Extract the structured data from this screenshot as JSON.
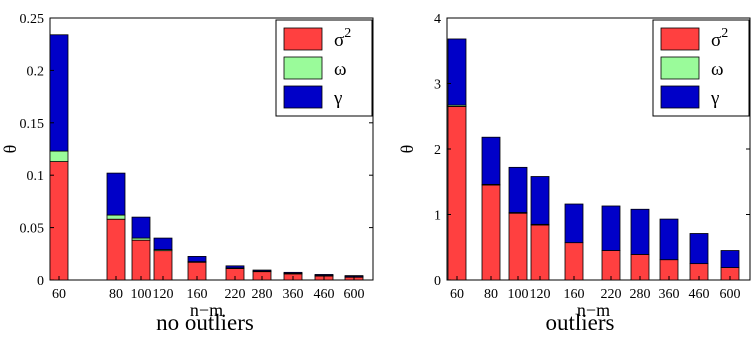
{
  "panels": [
    {
      "caption": "no outliers",
      "xlabel": "n−m",
      "ylabel": "θ",
      "yticks": [
        "0",
        "0.05",
        "0.1",
        "0.15",
        "0.2",
        "0.25"
      ]
    },
    {
      "caption": "outliers",
      "xlabel": "n−m",
      "ylabel": "θ",
      "yticks": [
        "0",
        "1",
        "2",
        "3",
        "4"
      ]
    }
  ],
  "legend": [
    {
      "label": "σ",
      "sup": "2",
      "color": "#ff4040"
    },
    {
      "label": "ω",
      "sup": "",
      "color": "#9afb9a"
    },
    {
      "label": "γ",
      "sup": "",
      "color": "#0000c8"
    }
  ],
  "chart_data": [
    {
      "type": "bar",
      "stacked": true,
      "title": "no outliers",
      "xlabel": "n−m",
      "ylabel": "θ",
      "categories": [
        "60",
        "80",
        "100",
        "120",
        "160",
        "220",
        "280",
        "360",
        "460",
        "600"
      ],
      "x": [
        60,
        80,
        100,
        120,
        160,
        220,
        280,
        360,
        460,
        600
      ],
      "ylim": [
        0,
        0.25
      ],
      "grid": false,
      "legend_position": "top-right",
      "series": [
        {
          "name": "σ²",
          "color": "#ff4040",
          "values": [
            0.113,
            0.058,
            0.038,
            0.028,
            0.017,
            0.011,
            0.008,
            0.006,
            0.004,
            0.003
          ]
        },
        {
          "name": "ω",
          "color": "#9afb9a",
          "values": [
            0.01,
            0.004,
            0.002,
            0.001,
            0.0005,
            0.0005,
            0.0005,
            0.0003,
            0.0003,
            0.0002
          ]
        },
        {
          "name": "γ",
          "color": "#0000c8",
          "values": [
            0.111,
            0.04,
            0.02,
            0.011,
            0.005,
            0.002,
            0.001,
            0.001,
            0.001,
            0.001
          ]
        }
      ]
    },
    {
      "type": "bar",
      "stacked": true,
      "title": "outliers",
      "xlabel": "n−m",
      "ylabel": "θ",
      "categories": [
        "60",
        "80",
        "100",
        "120",
        "160",
        "220",
        "280",
        "360",
        "460",
        "600"
      ],
      "x": [
        60,
        80,
        100,
        120,
        160,
        220,
        280,
        360,
        460,
        600
      ],
      "ylim": [
        0,
        4
      ],
      "grid": false,
      "legend_position": "top-right",
      "series": [
        {
          "name": "σ²",
          "color": "#ff4040",
          "values": [
            2.65,
            1.45,
            1.02,
            0.84,
            0.57,
            0.45,
            0.39,
            0.31,
            0.25,
            0.19
          ]
        },
        {
          "name": "ω",
          "color": "#9afb9a",
          "values": [
            0.02,
            0.01,
            0.01,
            0.01,
            0.0,
            0.0,
            0.0,
            0.0,
            0.0,
            0.0
          ]
        },
        {
          "name": "γ",
          "color": "#0000c8",
          "values": [
            1.01,
            0.72,
            0.69,
            0.73,
            0.59,
            0.68,
            0.69,
            0.62,
            0.46,
            0.26
          ]
        }
      ]
    }
  ]
}
